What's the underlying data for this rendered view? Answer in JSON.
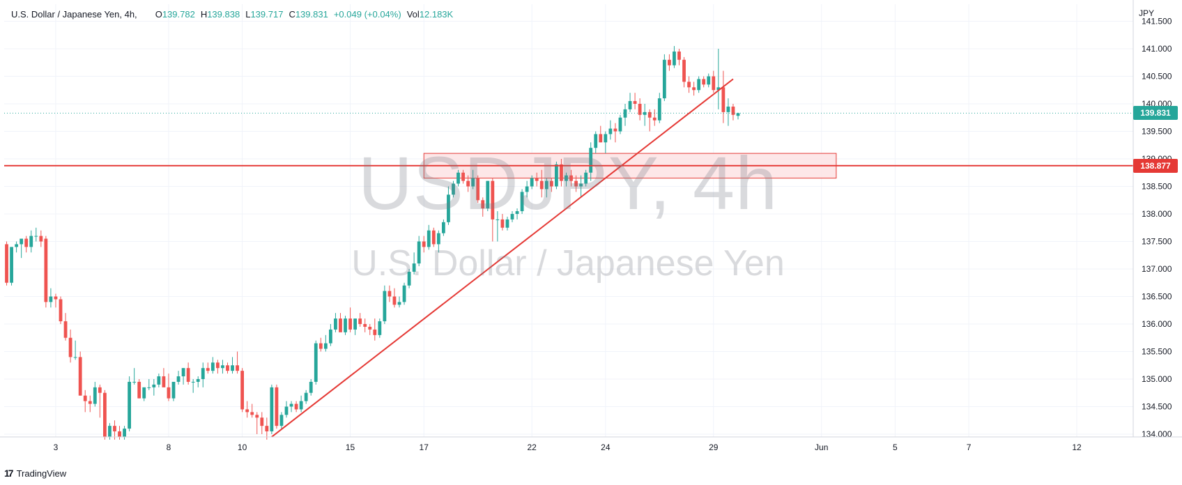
{
  "legend": {
    "symbol": "U.S. Dollar / Japanese Yen, 4h,",
    "open_key": "O",
    "open": "139.782",
    "high_key": "H",
    "high": "139.838",
    "low_key": "L",
    "low": "139.717",
    "close_key": "C",
    "close": "139.831",
    "change": "+0.049 (+0.04%)",
    "vol_key": "Vol",
    "vol": "12.183K"
  },
  "currency": "JPY",
  "watermark": {
    "ticker": "USDJPY, 4h",
    "description": "U.S. Dollar / Japanese Yen"
  },
  "footer": {
    "brand": "TradingView",
    "logo": "17"
  },
  "price_labels": {
    "current": "139.831",
    "horizontal_line": "138.877"
  },
  "colors": {
    "up": "#26a69a",
    "down": "#ef5350",
    "line": "#e53935",
    "zone_fill": "#fde3e4",
    "zone_border": "#e53935",
    "grid": "#f0f3fa"
  },
  "chart_data": {
    "type": "candlestick",
    "symbol": "USDJPY",
    "timeframe": "4h",
    "ylim": [
      134.0,
      141.5
    ],
    "yticks": [
      "134.000",
      "134.500",
      "135.000",
      "135.500",
      "136.000",
      "136.500",
      "137.000",
      "137.500",
      "138.000",
      "138.500",
      "139.000",
      "139.500",
      "140.000",
      "140.500",
      "141.000",
      "141.500"
    ],
    "xticks": [
      {
        "label": "3",
        "bar": 10
      },
      {
        "label": "8",
        "bar": 33
      },
      {
        "label": "10",
        "bar": 48
      },
      {
        "label": "15",
        "bar": 70
      },
      {
        "label": "17",
        "bar": 85
      },
      {
        "label": "22",
        "bar": 107
      },
      {
        "label": "24",
        "bar": 122
      },
      {
        "label": "29",
        "bar": 144
      },
      {
        "label": "Jun",
        "bar": 166
      },
      {
        "label": "5",
        "bar": 181
      },
      {
        "label": "7",
        "bar": 196
      },
      {
        "label": "12",
        "bar": 218
      }
    ],
    "total_slots": 230,
    "candles": [
      [
        137.45,
        137.5,
        136.7,
        136.75
      ],
      [
        136.75,
        137.4,
        136.7,
        137.4
      ],
      [
        137.4,
        137.5,
        137.3,
        137.45
      ],
      [
        137.45,
        137.55,
        137.2,
        137.55
      ],
      [
        137.55,
        137.6,
        137.3,
        137.4
      ],
      [
        137.4,
        137.7,
        137.3,
        137.6
      ],
      [
        137.6,
        137.75,
        137.5,
        137.6
      ],
      [
        137.6,
        137.7,
        137.4,
        137.5
      ],
      [
        137.55,
        137.6,
        136.3,
        136.4
      ],
      [
        136.4,
        136.65,
        136.3,
        136.5
      ],
      [
        136.5,
        136.55,
        136.3,
        136.45
      ],
      [
        136.45,
        136.5,
        136.0,
        136.05
      ],
      [
        136.05,
        136.2,
        135.7,
        135.75
      ],
      [
        135.75,
        135.9,
        135.3,
        135.4
      ],
      [
        135.4,
        135.7,
        135.35,
        135.4
      ],
      [
        135.4,
        135.5,
        134.7,
        134.7
      ],
      [
        134.7,
        134.8,
        134.4,
        134.6
      ],
      [
        134.6,
        134.7,
        134.4,
        134.55
      ],
      [
        134.55,
        134.95,
        134.5,
        134.85
      ],
      [
        134.85,
        134.9,
        134.3,
        134.75
      ],
      [
        134.75,
        134.8,
        133.9,
        133.95
      ],
      [
        133.95,
        134.2,
        133.9,
        134.15
      ],
      [
        134.15,
        134.25,
        133.9,
        134.05
      ],
      [
        134.05,
        134.15,
        133.9,
        133.95
      ],
      [
        133.95,
        134.15,
        133.9,
        134.1
      ],
      [
        134.1,
        135.05,
        134.05,
        134.95
      ],
      [
        134.95,
        135.2,
        134.9,
        134.95
      ],
      [
        134.95,
        135.0,
        134.65,
        134.65
      ],
      [
        134.65,
        134.85,
        134.6,
        134.85
      ],
      [
        134.85,
        135.0,
        134.8,
        134.85
      ],
      [
        134.85,
        135.0,
        134.7,
        134.9
      ],
      [
        134.9,
        135.1,
        134.85,
        135.05
      ],
      [
        135.05,
        135.2,
        134.9,
        134.85
      ],
      [
        134.85,
        135.1,
        134.6,
        134.65
      ],
      [
        134.65,
        134.95,
        134.6,
        134.95
      ],
      [
        134.95,
        135.15,
        134.9,
        135.05
      ],
      [
        135.05,
        135.2,
        134.9,
        135.2
      ],
      [
        135.2,
        135.3,
        134.9,
        134.95
      ],
      [
        134.95,
        135.0,
        134.75,
        134.95
      ],
      [
        134.95,
        135.05,
        134.85,
        135.0
      ],
      [
        135.0,
        135.3,
        134.85,
        135.2
      ],
      [
        135.2,
        135.3,
        135.1,
        135.15
      ],
      [
        135.15,
        135.4,
        135.1,
        135.3
      ],
      [
        135.3,
        135.35,
        135.1,
        135.2
      ],
      [
        135.2,
        135.35,
        135.1,
        135.25
      ],
      [
        135.25,
        135.3,
        135.1,
        135.15
      ],
      [
        135.15,
        135.4,
        135.1,
        135.25
      ],
      [
        135.25,
        135.5,
        135.1,
        135.15
      ],
      [
        135.15,
        135.2,
        134.4,
        134.45
      ],
      [
        134.45,
        134.6,
        134.3,
        134.4
      ],
      [
        134.4,
        134.55,
        134.3,
        134.35
      ],
      [
        134.35,
        134.4,
        134.0,
        134.3
      ],
      [
        134.3,
        134.4,
        134.0,
        134.15
      ],
      [
        134.15,
        134.3,
        133.9,
        134.05
      ],
      [
        134.05,
        134.9,
        134.0,
        134.85
      ],
      [
        134.85,
        134.9,
        134.1,
        134.15
      ],
      [
        134.15,
        134.4,
        134.1,
        134.35
      ],
      [
        134.35,
        134.6,
        134.3,
        134.5
      ],
      [
        134.5,
        134.6,
        134.4,
        134.55
      ],
      [
        134.55,
        134.6,
        134.4,
        134.45
      ],
      [
        134.45,
        134.7,
        134.4,
        134.6
      ],
      [
        134.6,
        134.8,
        134.55,
        134.75
      ],
      [
        134.75,
        135.0,
        134.7,
        134.95
      ],
      [
        134.95,
        135.7,
        134.9,
        135.65
      ],
      [
        135.65,
        135.75,
        135.5,
        135.55
      ],
      [
        135.55,
        135.8,
        135.5,
        135.65
      ],
      [
        135.65,
        136.0,
        135.6,
        135.9
      ],
      [
        135.9,
        136.2,
        135.85,
        136.1
      ],
      [
        136.1,
        136.2,
        135.9,
        135.85
      ],
      [
        135.85,
        136.15,
        135.8,
        136.1
      ],
      [
        136.1,
        136.3,
        135.85,
        135.9
      ],
      [
        135.9,
        136.1,
        135.8,
        136.1
      ],
      [
        136.1,
        136.2,
        135.95,
        136.0
      ],
      [
        136.0,
        136.1,
        135.85,
        135.95
      ],
      [
        135.95,
        136.0,
        135.8,
        135.9
      ],
      [
        135.9,
        136.1,
        135.7,
        135.8
      ],
      [
        135.8,
        136.1,
        135.75,
        136.05
      ],
      [
        136.05,
        136.7,
        136.0,
        136.6
      ],
      [
        136.6,
        136.7,
        136.4,
        136.5
      ],
      [
        136.5,
        136.65,
        136.3,
        136.35
      ],
      [
        136.35,
        136.5,
        136.3,
        136.4
      ],
      [
        136.4,
        136.75,
        136.35,
        136.7
      ],
      [
        136.7,
        137.0,
        136.65,
        136.95
      ],
      [
        136.95,
        137.3,
        136.9,
        137.1
      ],
      [
        137.1,
        137.6,
        137.05,
        137.5
      ],
      [
        137.5,
        137.6,
        137.3,
        137.4
      ],
      [
        137.4,
        137.8,
        137.35,
        137.7
      ],
      [
        137.7,
        137.75,
        137.4,
        137.45
      ],
      [
        137.45,
        137.7,
        137.3,
        137.65
      ],
      [
        137.65,
        137.9,
        137.6,
        137.85
      ],
      [
        137.85,
        138.5,
        137.8,
        138.35
      ],
      [
        138.35,
        138.6,
        138.3,
        138.55
      ],
      [
        138.55,
        138.8,
        138.5,
        138.75
      ],
      [
        138.75,
        138.8,
        138.55,
        138.6
      ],
      [
        138.6,
        138.7,
        138.4,
        138.5
      ],
      [
        138.5,
        138.8,
        138.45,
        138.65
      ],
      [
        138.65,
        138.7,
        138.2,
        138.25
      ],
      [
        138.25,
        138.3,
        137.95,
        138.1
      ],
      [
        138.1,
        138.6,
        138.05,
        138.6
      ],
      [
        138.6,
        138.65,
        137.5,
        137.9
      ],
      [
        137.9,
        138.05,
        137.5,
        137.9
      ],
      [
        137.9,
        138.0,
        137.7,
        137.75
      ],
      [
        137.75,
        137.95,
        137.7,
        137.9
      ],
      [
        137.9,
        138.05,
        137.85,
        138.0
      ],
      [
        138.0,
        138.1,
        137.9,
        138.05
      ],
      [
        138.05,
        138.45,
        138.0,
        138.4
      ],
      [
        138.4,
        138.6,
        138.3,
        138.5
      ],
      [
        138.5,
        138.7,
        138.45,
        138.65
      ],
      [
        138.65,
        138.75,
        138.5,
        138.6
      ],
      [
        138.6,
        138.8,
        138.3,
        138.45
      ],
      [
        138.45,
        138.65,
        138.3,
        138.6
      ],
      [
        138.6,
        138.65,
        138.4,
        138.5
      ],
      [
        138.5,
        138.95,
        138.45,
        138.9
      ],
      [
        138.9,
        139.0,
        138.5,
        138.6
      ],
      [
        138.6,
        138.75,
        138.5,
        138.7
      ],
      [
        138.7,
        138.8,
        138.5,
        138.6
      ],
      [
        138.6,
        138.7,
        138.4,
        138.5
      ],
      [
        138.5,
        138.7,
        138.3,
        138.55
      ],
      [
        138.55,
        138.8,
        138.5,
        138.75
      ],
      [
        138.75,
        139.3,
        138.6,
        139.2
      ],
      [
        139.2,
        139.5,
        139.1,
        139.45
      ],
      [
        139.45,
        139.6,
        139.3,
        139.3
      ],
      [
        139.3,
        139.5,
        139.1,
        139.45
      ],
      [
        139.45,
        139.7,
        139.35,
        139.55
      ],
      [
        139.55,
        139.65,
        139.3,
        139.5
      ],
      [
        139.5,
        139.8,
        139.45,
        139.75
      ],
      [
        139.75,
        140.0,
        139.6,
        139.9
      ],
      [
        139.9,
        140.2,
        139.85,
        140.05
      ],
      [
        140.05,
        140.2,
        139.9,
        140.0
      ],
      [
        140.0,
        140.1,
        139.7,
        139.8
      ],
      [
        139.8,
        140.0,
        139.6,
        139.85
      ],
      [
        139.85,
        139.9,
        139.5,
        139.75
      ],
      [
        139.75,
        139.9,
        139.6,
        139.7
      ],
      [
        139.7,
        140.2,
        139.65,
        140.1
      ],
      [
        140.1,
        140.9,
        140.05,
        140.8
      ],
      [
        140.8,
        140.9,
        140.6,
        140.7
      ],
      [
        140.7,
        141.05,
        140.65,
        140.95
      ],
      [
        140.95,
        141.0,
        140.7,
        140.8
      ],
      [
        140.8,
        140.85,
        140.3,
        140.4
      ],
      [
        140.4,
        140.5,
        140.2,
        140.3
      ],
      [
        140.3,
        140.4,
        140.15,
        140.25
      ],
      [
        140.25,
        140.5,
        140.2,
        140.45
      ],
      [
        140.45,
        140.5,
        140.3,
        140.35
      ],
      [
        140.35,
        140.55,
        140.3,
        140.5
      ],
      [
        140.5,
        140.6,
        140.2,
        140.25
      ],
      [
        140.25,
        141.0,
        139.9,
        140.3
      ],
      [
        140.3,
        140.6,
        139.65,
        139.85
      ],
      [
        139.85,
        140.1,
        139.6,
        139.95
      ],
      [
        139.95,
        140.0,
        139.7,
        139.8
      ],
      [
        139.782,
        139.838,
        139.717,
        139.831
      ]
    ],
    "annotations": {
      "horizontal_line": 138.877,
      "zone": {
        "top": 139.1,
        "bottom": 138.65,
        "start_bar": 85,
        "end_bar": 169
      },
      "trendline": {
        "from": {
          "bar": 54,
          "price": 133.95
        },
        "to": {
          "bar": 148,
          "price": 140.45
        }
      }
    }
  }
}
